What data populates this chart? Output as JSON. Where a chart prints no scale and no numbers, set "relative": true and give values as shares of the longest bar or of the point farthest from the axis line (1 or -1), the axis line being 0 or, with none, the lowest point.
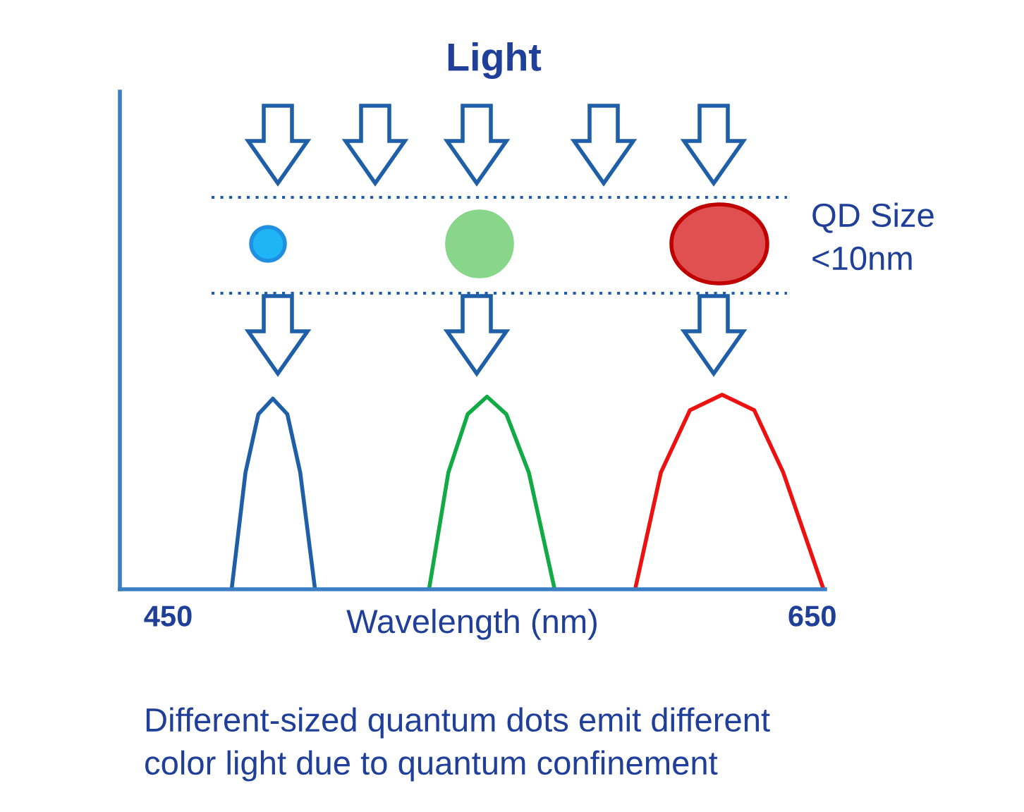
{
  "chart_data": {
    "type": "line",
    "title": "Light",
    "xlabel": "Wavelength (nm)",
    "relative": true,
    "xlim": [
      435,
      654
    ],
    "xticks": [
      450,
      650
    ],
    "series": [
      {
        "color": "#1f5fa8",
        "x": [
          469.7,
          474,
          478,
          482.5,
          487,
          491,
          495.6
        ],
        "values": [
          0,
          0.6,
          0.9,
          0.98,
          0.9,
          0.6,
          0
        ]
      },
      {
        "color": "#11aa44",
        "x": [
          531,
          537,
          543,
          549,
          555,
          562,
          570
        ],
        "values": [
          0,
          0.6,
          0.9,
          0.99,
          0.9,
          0.6,
          0
        ]
      },
      {
        "color": "#ee1111",
        "x": [
          595,
          603,
          612,
          622,
          632,
          641,
          653.5
        ],
        "values": [
          0,
          0.6,
          0.92,
          1,
          0.92,
          0.6,
          0
        ]
      }
    ],
    "annotations": [
      "QD Size\n<10nm",
      "Different-sized quantum dots emit different\ncolor light due to quantum confinement"
    ],
    "grid": false,
    "marker": "none",
    "line_style": "solid"
  }
}
